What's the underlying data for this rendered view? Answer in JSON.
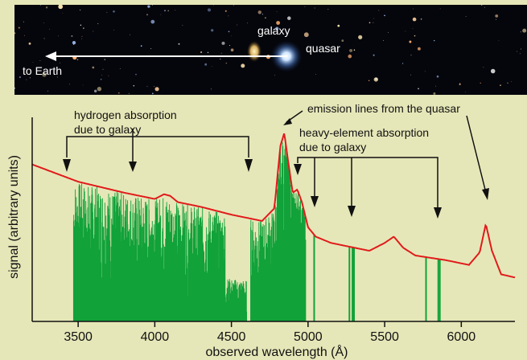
{
  "image_strip": {
    "labels": {
      "galaxy": "galaxy",
      "quasar": "quasar",
      "to_earth": "to Earth"
    }
  },
  "annotations": {
    "hydrogen_line1": "hydrogen absorption",
    "hydrogen_line2": "due to galaxy",
    "emission": "emission lines from the quasar",
    "heavy_line1": "heavy-element absorption",
    "heavy_line2": "due to galaxy"
  },
  "colors": {
    "background": "#e6e7b8",
    "continuum": "#e01b1b",
    "absorption": "#11a23a",
    "axis": "#111111"
  },
  "chart_data": {
    "type": "line",
    "xlabel": "observed wavelength (Å)",
    "ylabel": "signal (arbitrary units)",
    "xlim": [
      3200,
      6350
    ],
    "x_ticks": [
      3500,
      4000,
      4500,
      5000,
      5500,
      6000
    ],
    "series": [
      {
        "x": [
          3200,
          3500,
          3800,
          4000,
          4060,
          4100,
          4150,
          4300,
          4500,
          4700,
          4780,
          4820,
          4845,
          4870,
          4900,
          4930,
          4960,
          5000,
          5050,
          5150,
          5250,
          5400,
          5500,
          5560,
          5620,
          5700,
          5900,
          6050,
          6120,
          6160,
          6200,
          6260,
          6350
        ],
        "y": [
          1.0,
          0.89,
          0.82,
          0.78,
          0.81,
          0.8,
          0.76,
          0.73,
          0.68,
          0.64,
          0.72,
          1.12,
          1.2,
          1.02,
          0.82,
          0.84,
          0.76,
          0.6,
          0.54,
          0.5,
          0.48,
          0.45,
          0.5,
          0.54,
          0.47,
          0.42,
          0.39,
          0.36,
          0.44,
          0.62,
          0.45,
          0.3,
          0.28
        ]
      }
    ],
    "absorption_lines_wavelength": [
      5040,
      5270,
      5290,
      5300,
      5770,
      5850,
      5860
    ]
  }
}
